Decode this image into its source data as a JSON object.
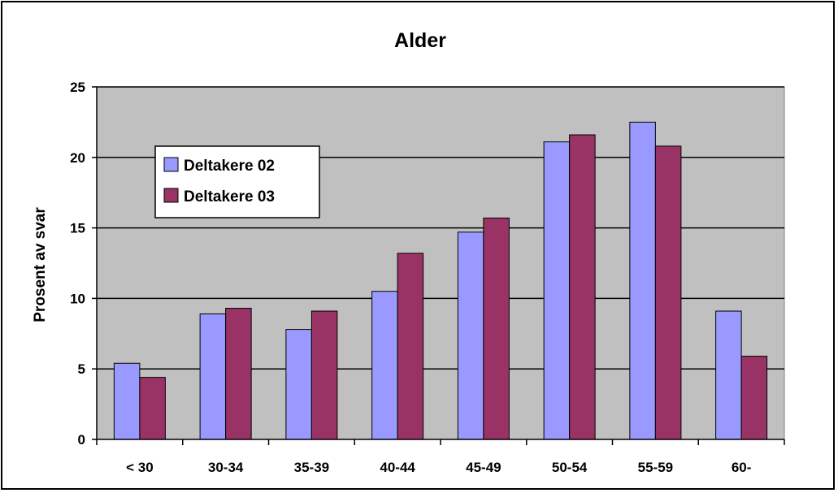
{
  "chart_data": {
    "type": "bar",
    "title": "Alder",
    "xlabel": "",
    "ylabel": "Prosent av svar",
    "ylim": [
      0,
      25
    ],
    "yticks": [
      0,
      5,
      10,
      15,
      20,
      25
    ],
    "categories": [
      "< 30",
      "30-34",
      "35-39",
      "40-44",
      "45-49",
      "50-54",
      "55-59",
      "60-"
    ],
    "series": [
      {
        "name": "Deltakere 02",
        "color": "#9999ff",
        "values": [
          5.4,
          8.9,
          7.8,
          10.5,
          14.7,
          21.1,
          22.5,
          9.1
        ]
      },
      {
        "name": "Deltakere 03",
        "color": "#993366",
        "values": [
          4.4,
          9.3,
          9.1,
          13.2,
          15.7,
          21.6,
          20.8,
          5.9
        ]
      }
    ],
    "plot_background": "#c0c0c0",
    "grid": true,
    "legend_position": "upper-left"
  }
}
